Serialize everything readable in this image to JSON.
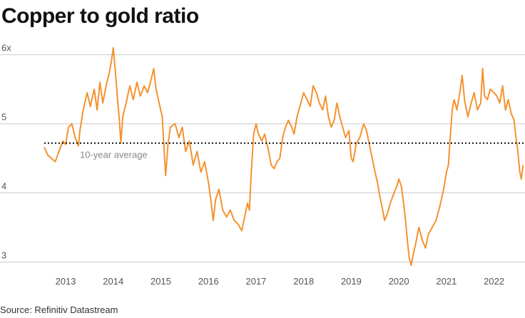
{
  "chart_data": {
    "type": "line",
    "title": "Copper to gold ratio",
    "source": "Source: Refinitiv Datastream",
    "xlabel": "",
    "ylabel": "",
    "xlim": [
      2012.55,
      2022.65
    ],
    "ylim": [
      2.9,
      6.1
    ],
    "yticks": [
      3,
      4,
      5,
      6
    ],
    "ytick_labels": [
      "3",
      "4",
      "5",
      "6x"
    ],
    "xticks": [
      2013,
      2014,
      2015,
      2016,
      2017,
      2018,
      2019,
      2020,
      2021,
      2022
    ],
    "xtick_labels": [
      "2013",
      "2014",
      "2015",
      "2016",
      "2017",
      "2018",
      "2019",
      "2020",
      "2021",
      "2022"
    ],
    "grid": true,
    "colors": {
      "line": "#f5922f",
      "average": "#111111",
      "grid": "#cccccc"
    },
    "average": {
      "value": 4.72,
      "label": "10-year average",
      "style": "dotted"
    },
    "series": [
      {
        "points": [
          [
            2012.55,
            4.66
          ],
          [
            2012.62,
            4.55
          ],
          [
            2012.7,
            4.5
          ],
          [
            2012.78,
            4.45
          ],
          [
            2012.86,
            4.6
          ],
          [
            2012.94,
            4.75
          ],
          [
            2013.0,
            4.7
          ],
          [
            2013.06,
            4.95
          ],
          [
            2013.13,
            5.0
          ],
          [
            2013.2,
            4.8
          ],
          [
            2013.27,
            4.68
          ],
          [
            2013.3,
            4.9
          ],
          [
            2013.37,
            5.2
          ],
          [
            2013.45,
            5.45
          ],
          [
            2013.52,
            5.25
          ],
          [
            2013.6,
            5.5
          ],
          [
            2013.66,
            5.2
          ],
          [
            2013.72,
            5.6
          ],
          [
            2013.78,
            5.3
          ],
          [
            2013.85,
            5.55
          ],
          [
            2013.92,
            5.75
          ],
          [
            2013.96,
            5.9
          ],
          [
            2014.0,
            6.1
          ],
          [
            2014.04,
            5.8
          ],
          [
            2014.09,
            5.35
          ],
          [
            2014.13,
            5.05
          ],
          [
            2014.16,
            4.72
          ],
          [
            2014.2,
            5.1
          ],
          [
            2014.27,
            5.3
          ],
          [
            2014.35,
            5.55
          ],
          [
            2014.42,
            5.35
          ],
          [
            2014.5,
            5.6
          ],
          [
            2014.57,
            5.4
          ],
          [
            2014.65,
            5.55
          ],
          [
            2014.72,
            5.45
          ],
          [
            2014.8,
            5.65
          ],
          [
            2014.85,
            5.8
          ],
          [
            2014.9,
            5.5
          ],
          [
            2014.98,
            5.25
          ],
          [
            2015.03,
            5.1
          ],
          [
            2015.07,
            4.6
          ],
          [
            2015.1,
            4.25
          ],
          [
            2015.15,
            4.7
          ],
          [
            2015.2,
            4.95
          ],
          [
            2015.3,
            5.0
          ],
          [
            2015.38,
            4.8
          ],
          [
            2015.45,
            4.95
          ],
          [
            2015.52,
            4.6
          ],
          [
            2015.6,
            4.75
          ],
          [
            2015.68,
            4.4
          ],
          [
            2015.76,
            4.6
          ],
          [
            2015.84,
            4.3
          ],
          [
            2015.92,
            4.45
          ],
          [
            2016.0,
            4.15
          ],
          [
            2016.06,
            3.85
          ],
          [
            2016.1,
            3.6
          ],
          [
            2016.15,
            3.9
          ],
          [
            2016.22,
            4.05
          ],
          [
            2016.3,
            3.75
          ],
          [
            2016.38,
            3.65
          ],
          [
            2016.46,
            3.75
          ],
          [
            2016.54,
            3.6
          ],
          [
            2016.62,
            3.55
          ],
          [
            2016.7,
            3.45
          ],
          [
            2016.76,
            3.65
          ],
          [
            2016.82,
            3.85
          ],
          [
            2016.86,
            3.75
          ],
          [
            2016.9,
            4.3
          ],
          [
            2016.95,
            4.85
          ],
          [
            2017.0,
            5.0
          ],
          [
            2017.05,
            4.85
          ],
          [
            2017.12,
            4.75
          ],
          [
            2017.18,
            4.85
          ],
          [
            2017.25,
            4.65
          ],
          [
            2017.32,
            4.4
          ],
          [
            2017.38,
            4.35
          ],
          [
            2017.44,
            4.45
          ],
          [
            2017.5,
            4.5
          ],
          [
            2017.56,
            4.8
          ],
          [
            2017.62,
            4.95
          ],
          [
            2017.68,
            5.05
          ],
          [
            2017.75,
            4.95
          ],
          [
            2017.8,
            4.85
          ],
          [
            2017.86,
            5.1
          ],
          [
            2017.92,
            5.25
          ],
          [
            2018.0,
            5.45
          ],
          [
            2018.07,
            5.35
          ],
          [
            2018.14,
            5.25
          ],
          [
            2018.2,
            5.55
          ],
          [
            2018.27,
            5.45
          ],
          [
            2018.33,
            5.3
          ],
          [
            2018.4,
            5.2
          ],
          [
            2018.46,
            5.4
          ],
          [
            2018.52,
            5.1
          ],
          [
            2018.58,
            4.95
          ],
          [
            2018.64,
            5.05
          ],
          [
            2018.7,
            5.3
          ],
          [
            2018.76,
            5.1
          ],
          [
            2018.82,
            4.95
          ],
          [
            2018.88,
            4.8
          ],
          [
            2018.95,
            4.9
          ],
          [
            2019.0,
            4.5
          ],
          [
            2019.04,
            4.45
          ],
          [
            2019.1,
            4.7
          ],
          [
            2019.18,
            4.8
          ],
          [
            2019.26,
            5.0
          ],
          [
            2019.32,
            4.9
          ],
          [
            2019.38,
            4.7
          ],
          [
            2019.44,
            4.5
          ],
          [
            2019.5,
            4.3
          ],
          [
            2019.55,
            4.15
          ],
          [
            2019.6,
            3.95
          ],
          [
            2019.66,
            3.75
          ],
          [
            2019.7,
            3.6
          ],
          [
            2019.76,
            3.7
          ],
          [
            2019.82,
            3.85
          ],
          [
            2019.9,
            4.0
          ],
          [
            2019.96,
            4.1
          ],
          [
            2020.0,
            4.2
          ],
          [
            2020.05,
            4.1
          ],
          [
            2020.1,
            3.85
          ],
          [
            2020.14,
            3.6
          ],
          [
            2020.18,
            3.3
          ],
          [
            2020.22,
            3.05
          ],
          [
            2020.26,
            2.95
          ],
          [
            2020.3,
            3.1
          ],
          [
            2020.35,
            3.25
          ],
          [
            2020.42,
            3.5
          ],
          [
            2020.5,
            3.3
          ],
          [
            2020.56,
            3.2
          ],
          [
            2020.62,
            3.4
          ],
          [
            2020.7,
            3.5
          ],
          [
            2020.78,
            3.6
          ],
          [
            2020.86,
            3.8
          ],
          [
            2020.94,
            4.05
          ],
          [
            2021.0,
            4.3
          ],
          [
            2021.04,
            4.4
          ],
          [
            2021.08,
            4.8
          ],
          [
            2021.12,
            5.2
          ],
          [
            2021.16,
            5.35
          ],
          [
            2021.22,
            5.2
          ],
          [
            2021.28,
            5.45
          ],
          [
            2021.33,
            5.7
          ],
          [
            2021.38,
            5.35
          ],
          [
            2021.45,
            5.1
          ],
          [
            2021.52,
            5.3
          ],
          [
            2021.58,
            5.45
          ],
          [
            2021.65,
            5.2
          ],
          [
            2021.72,
            5.3
          ],
          [
            2021.76,
            5.8
          ],
          [
            2021.8,
            5.4
          ],
          [
            2021.86,
            5.35
          ],
          [
            2021.92,
            5.5
          ],
          [
            2022.0,
            5.45
          ],
          [
            2022.06,
            5.4
          ],
          [
            2022.12,
            5.3
          ],
          [
            2022.18,
            5.55
          ],
          [
            2022.24,
            5.2
          ],
          [
            2022.3,
            5.35
          ],
          [
            2022.36,
            5.15
          ],
          [
            2022.42,
            5.05
          ],
          [
            2022.46,
            4.8
          ],
          [
            2022.5,
            4.6
          ],
          [
            2022.54,
            4.3
          ],
          [
            2022.57,
            4.2
          ],
          [
            2022.61,
            4.4
          ]
        ]
      }
    ]
  }
}
